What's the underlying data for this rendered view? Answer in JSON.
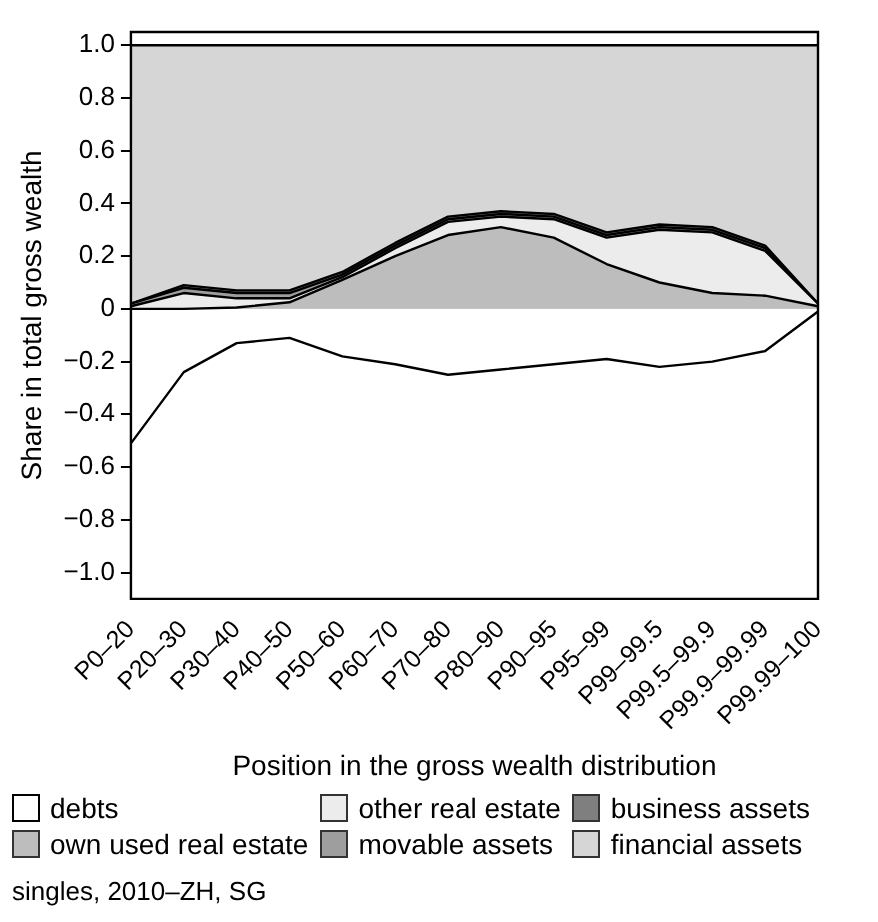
{
  "chart_data": {
    "type": "area",
    "stacked": true,
    "xlabel": "Position in the gross wealth distribution",
    "ylabel": "Share in total gross wealth",
    "categories": [
      "P0–20",
      "P20–30",
      "P30–40",
      "P40–50",
      "P50–60",
      "P60–70",
      "P70–80",
      "P80–90",
      "P90–95",
      "P95–99",
      "P99–99.5",
      "P99.5–99.9",
      "P99.9–99.99",
      "P99.99–100"
    ],
    "series": [
      {
        "name": "debts",
        "type": "line",
        "color": "#000000",
        "values": [
          -0.51,
          -0.24,
          -0.13,
          -0.11,
          -0.18,
          -0.21,
          -0.25,
          -0.23,
          -0.21,
          -0.19,
          -0.22,
          -0.2,
          -0.16,
          -0.01
        ]
      },
      {
        "name": "own used real estate",
        "color": "#bdbdbd",
        "values": [
          0,
          0,
          0.005,
          0.025,
          0.11,
          0.2,
          0.28,
          0.31,
          0.27,
          0.17,
          0.1,
          0.06,
          0.05,
          0.01
        ]
      },
      {
        "name": "other real estate",
        "color": "#ececec",
        "values": [
          0.01,
          0.06,
          0.035,
          0.015,
          0.01,
          0.03,
          0.05,
          0.04,
          0.07,
          0.1,
          0.2,
          0.23,
          0.17,
          0.01
        ]
      },
      {
        "name": "movable assets",
        "color": "#9e9e9e",
        "values": [
          0.01,
          0.02,
          0.02,
          0.02,
          0.01,
          0.01,
          0.01,
          0.01,
          0.01,
          0.01,
          0.01,
          0.01,
          0.01,
          0
        ]
      },
      {
        "name": "business assets",
        "color": "#7f7f7f",
        "values": [
          0,
          0.01,
          0.01,
          0.01,
          0.01,
          0.01,
          0.01,
          0.01,
          0.01,
          0.01,
          0.01,
          0.01,
          0.01,
          0
        ]
      },
      {
        "name": "financial assets",
        "color": "#d6d6d6",
        "values": [
          0.98,
          0.91,
          0.93,
          0.93,
          0.86,
          0.75,
          0.65,
          0.63,
          0.64,
          0.71,
          0.68,
          0.69,
          0.76,
          0.98
        ]
      }
    ],
    "ylim": [
      -1.1,
      1.05
    ],
    "yticks": [
      {
        "value": -1,
        "label": "−1.0"
      },
      {
        "value": -0.8,
        "label": "−0.8"
      },
      {
        "value": -0.6,
        "label": "−0.6"
      },
      {
        "value": -0.4,
        "label": "−0.4"
      },
      {
        "value": -0.2,
        "label": "−0.2"
      },
      0,
      {
        "value": 0.2,
        "label": "0.2"
      },
      {
        "value": 0.4,
        "label": "0.4"
      },
      {
        "value": 0.6,
        "label": "0.6"
      },
      {
        "value": 0.8,
        "label": "0.8"
      },
      {
        "value": 1,
        "label": "1.0"
      }
    ],
    "grid": false,
    "legend": "bottom",
    "annotations": [
      "singles, 2010–ZH, SG"
    ]
  }
}
